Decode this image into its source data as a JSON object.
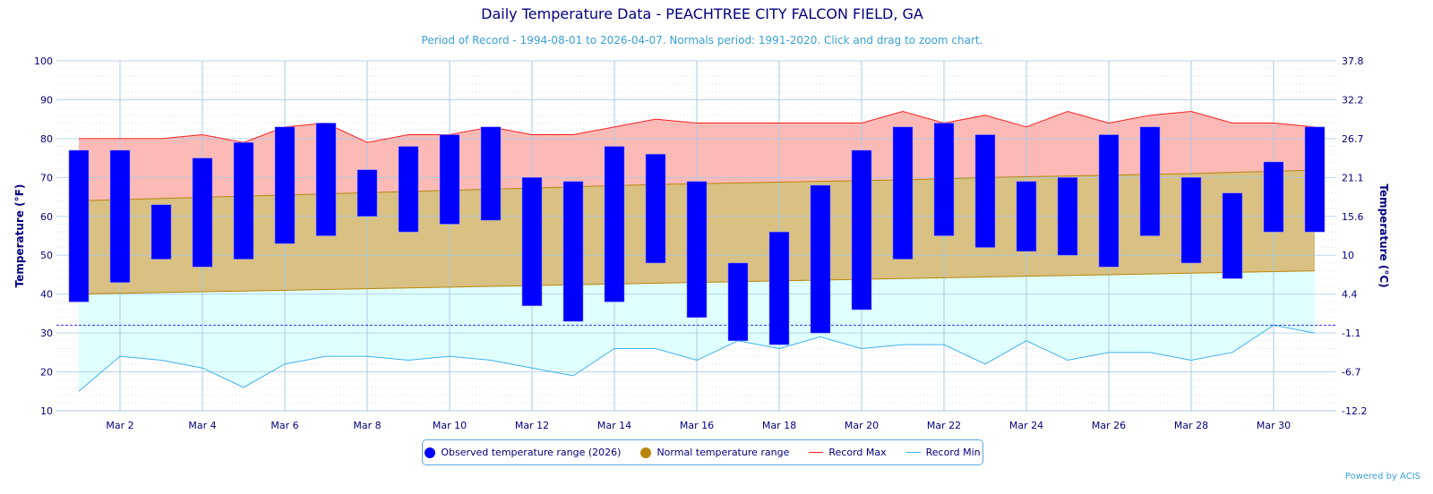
{
  "chart_data": {
    "type": "bar",
    "title": "Daily Temperature Data - PEACHTREE CITY FALCON FIELD, GA",
    "subtitle": "Period of Record - 1994-08-01 to 2026-04-07. Normals period: 1991-2020. Click and drag to zoom chart.",
    "ylabel": "Temperature (°F)",
    "ylabel_right": "Temperature (°C)",
    "ylim": [
      10,
      100
    ],
    "yticks": [
      10,
      20,
      30,
      40,
      50,
      60,
      70,
      80,
      90,
      100
    ],
    "yticks_right": [
      "-12.2",
      "-6.7",
      "-1.1",
      "4.4",
      "10",
      "15.6",
      "21.1",
      "26.7",
      "32.2",
      "37.8"
    ],
    "xtick_labels": [
      "Mar 2",
      "Mar 4",
      "Mar 6",
      "Mar 8",
      "Mar 10",
      "Mar 12",
      "Mar 14",
      "Mar 16",
      "Mar 18",
      "Mar 20",
      "Mar 22",
      "Mar 24",
      "Mar 26",
      "Mar 28",
      "Mar 30"
    ],
    "days": [
      1,
      2,
      3,
      4,
      5,
      6,
      7,
      8,
      9,
      10,
      11,
      12,
      13,
      14,
      15,
      16,
      17,
      18,
      19,
      20,
      21,
      22,
      23,
      24,
      25,
      26,
      27,
      28,
      29,
      30,
      31
    ],
    "freezing_line": 32,
    "grid": true,
    "legend_placement": "bottom",
    "series": [
      {
        "name": "Observed temperature range (2026)",
        "color": "#0000ff",
        "high": [
          77,
          77,
          63,
          75,
          79,
          83,
          84,
          72,
          78,
          81,
          83,
          70,
          69,
          78,
          76,
          69,
          48,
          56,
          68,
          77,
          83,
          84,
          81,
          69,
          70,
          81,
          83,
          70,
          66,
          74,
          83
        ],
        "low": [
          38,
          43,
          49,
          47,
          49,
          53,
          55,
          60,
          56,
          58,
          59,
          37,
          33,
          38,
          48,
          34,
          28,
          27,
          30,
          36,
          49,
          55,
          52,
          51,
          50,
          47,
          55,
          48,
          44,
          56,
          56
        ]
      },
      {
        "name": "Normal temperature range",
        "color": "#b8860b",
        "high": [
          64,
          64.3,
          64.6,
          64.9,
          65.2,
          65.5,
          65.8,
          66.1,
          66.4,
          66.7,
          67,
          67.3,
          67.6,
          67.9,
          68.2,
          68.4,
          68.6,
          68.8,
          69,
          69.2,
          69.4,
          69.7,
          70,
          70.2,
          70.4,
          70.6,
          70.8,
          71,
          71.3,
          71.6,
          71.9
        ],
        "low": [
          40,
          40.2,
          40.4,
          40.6,
          40.8,
          41,
          41.2,
          41.4,
          41.6,
          41.8,
          42,
          42.2,
          42.4,
          42.6,
          42.8,
          43,
          43.2,
          43.4,
          43.6,
          43.8,
          44,
          44.2,
          44.4,
          44.6,
          44.8,
          45,
          45.2,
          45.4,
          45.6,
          45.8,
          46
        ]
      },
      {
        "name": "Record Max",
        "color": "#ff2020",
        "values": [
          80,
          80,
          80,
          81,
          79,
          83,
          84,
          79,
          81,
          81,
          83,
          81,
          81,
          83,
          85,
          84,
          84,
          84,
          84,
          84,
          87,
          84,
          86,
          83,
          87,
          84,
          86,
          87,
          84,
          84,
          83
        ]
      },
      {
        "name": "Record Min",
        "color": "#40b0f0",
        "values": [
          15,
          24,
          23,
          21,
          16,
          22,
          24,
          24,
          23,
          24,
          23,
          21,
          19,
          26,
          26,
          23,
          28,
          26,
          29,
          26,
          27,
          27,
          22,
          28,
          23,
          25,
          25,
          23,
          25,
          32,
          30
        ]
      }
    ]
  },
  "credits": "Powered by ACIS"
}
